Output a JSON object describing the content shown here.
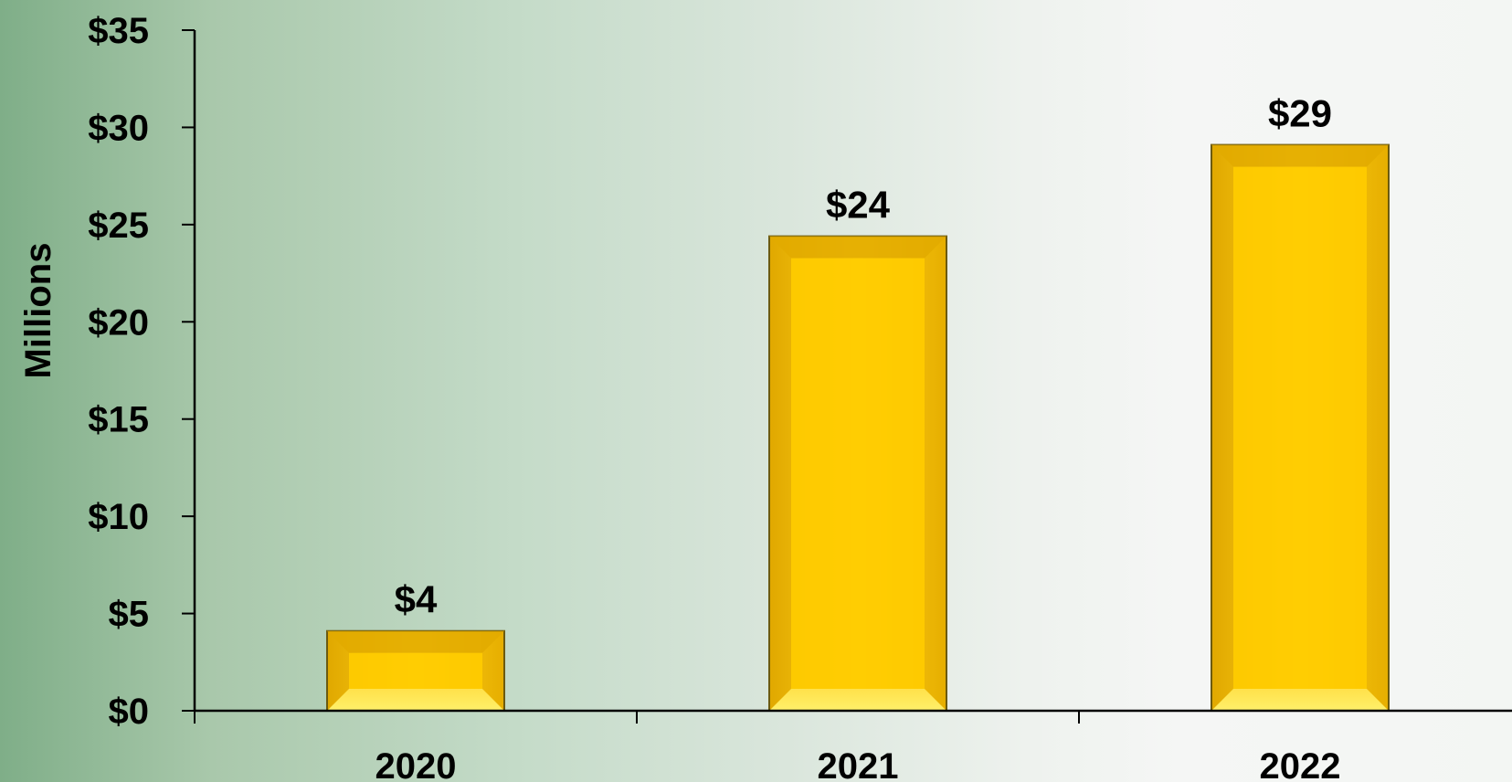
{
  "chart_data": {
    "type": "bar",
    "categories": [
      "2020",
      "2021",
      "2022"
    ],
    "values": [
      4.1,
      24.4,
      29.1
    ],
    "data_labels": [
      "$4",
      "$24",
      "$29"
    ],
    "ylabel": "Millions",
    "xlabel": "",
    "ylim": [
      0,
      35
    ],
    "yticks": [
      0,
      5,
      10,
      15,
      20,
      25,
      30,
      35
    ],
    "ytick_labels": [
      "$0",
      "$5",
      "$10",
      "$15",
      "$20",
      "$25",
      "$30",
      "$35"
    ],
    "grid": false,
    "legend": "none",
    "colors": {
      "bar": "#ffcc00",
      "bar_edge": "#6b5a10",
      "axis": "#000000"
    }
  }
}
